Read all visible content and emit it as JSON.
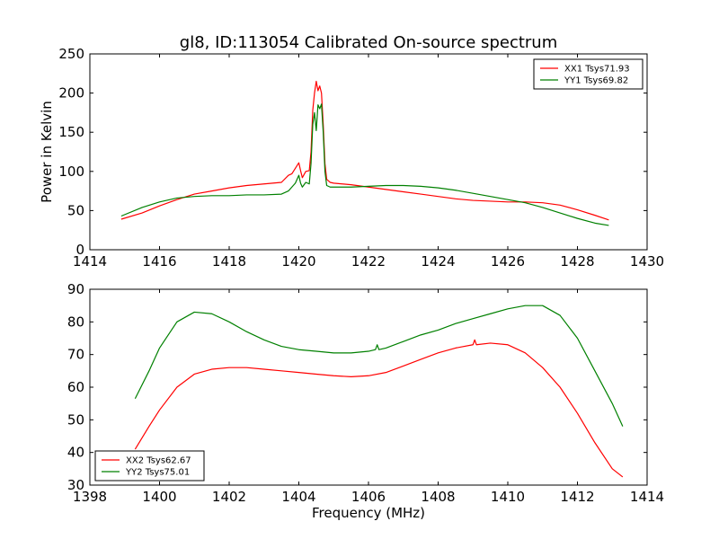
{
  "figure": {
    "title": "gl8, ID:113054 Calibrated On-source spectrum",
    "xlabel": "Frequency (MHz)"
  },
  "chart_data": [
    {
      "type": "line",
      "ylabel": "Power in Kelvin",
      "xlim": [
        1414,
        1430
      ],
      "ylim": [
        0,
        250
      ],
      "xticks": [
        1414,
        1416,
        1418,
        1420,
        1422,
        1424,
        1426,
        1428,
        1430
      ],
      "yticks": [
        0,
        50,
        100,
        150,
        200,
        250
      ],
      "legend_position": "top-right",
      "grid": false,
      "series": [
        {
          "name": "XX1 Tsys71.93",
          "color": "#ff0000",
          "x": [
            1414.9,
            1415.5,
            1416.0,
            1416.5,
            1417.0,
            1417.5,
            1418.0,
            1418.5,
            1419.0,
            1419.5,
            1419.7,
            1419.8,
            1419.9,
            1420.0,
            1420.05,
            1420.1,
            1420.2,
            1420.3,
            1420.35,
            1420.4,
            1420.45,
            1420.5,
            1420.55,
            1420.6,
            1420.65,
            1420.7,
            1420.75,
            1420.8,
            1420.9,
            1421.0,
            1421.5,
            1422.0,
            1422.5,
            1423.0,
            1423.5,
            1424.0,
            1424.5,
            1425.0,
            1425.5,
            1426.0,
            1426.5,
            1427.0,
            1427.5,
            1428.0,
            1428.5,
            1428.9
          ],
          "y": [
            39,
            47,
            56,
            64,
            71,
            75,
            79,
            82,
            84,
            86,
            95,
            97,
            104,
            111,
            101,
            92,
            100,
            101,
            125,
            178,
            200,
            215,
            203,
            209,
            200,
            160,
            110,
            90,
            86,
            85,
            83,
            80,
            77,
            74,
            71,
            68,
            65,
            63,
            62,
            61,
            61,
            60,
            57,
            51,
            44,
            38
          ]
        },
        {
          "name": "YY1 Tsys69.82",
          "color": "#008000",
          "x": [
            1414.9,
            1415.5,
            1416.0,
            1416.5,
            1417.0,
            1417.5,
            1418.0,
            1418.5,
            1419.0,
            1419.5,
            1419.7,
            1419.8,
            1419.9,
            1420.0,
            1420.05,
            1420.1,
            1420.2,
            1420.3,
            1420.35,
            1420.4,
            1420.45,
            1420.5,
            1420.55,
            1420.6,
            1420.65,
            1420.7,
            1420.75,
            1420.8,
            1420.9,
            1421.0,
            1421.5,
            1422.0,
            1422.5,
            1423.0,
            1423.5,
            1424.0,
            1424.5,
            1425.0,
            1425.5,
            1426.0,
            1426.5,
            1427.0,
            1427.5,
            1428.0,
            1428.5,
            1428.9
          ],
          "y": [
            43,
            54,
            61,
            66,
            68,
            69,
            69,
            70,
            70,
            71,
            75,
            80,
            85,
            95,
            85,
            80,
            86,
            84,
            110,
            160,
            175,
            152,
            185,
            180,
            186,
            150,
            100,
            82,
            80,
            80,
            80,
            81,
            82,
            82,
            81,
            79,
            76,
            72,
            68,
            64,
            60,
            54,
            47,
            40,
            34,
            31
          ]
        }
      ]
    },
    {
      "type": "line",
      "ylabel": "",
      "xlim": [
        1398,
        1414
      ],
      "ylim": [
        30,
        90
      ],
      "xticks": [
        1398,
        1400,
        1402,
        1404,
        1406,
        1408,
        1410,
        1412,
        1414
      ],
      "yticks": [
        30,
        40,
        50,
        60,
        70,
        80,
        90
      ],
      "legend_position": "bottom-left",
      "grid": false,
      "series": [
        {
          "name": "XX2 Tsys62.67",
          "color": "#ff0000",
          "x": [
            1399.3,
            1399.7,
            1400.0,
            1400.5,
            1401.0,
            1401.5,
            1402.0,
            1402.5,
            1403.0,
            1403.5,
            1404.0,
            1404.5,
            1405.0,
            1405.5,
            1406.0,
            1406.5,
            1407.0,
            1407.5,
            1408.0,
            1408.5,
            1409.0,
            1409.05,
            1409.1,
            1409.5,
            1410.0,
            1410.5,
            1411.0,
            1411.5,
            1412.0,
            1412.5,
            1413.0,
            1413.3
          ],
          "y": [
            41,
            48,
            53,
            60,
            64,
            65.5,
            66,
            66,
            65.5,
            65,
            64.5,
            64,
            63.5,
            63.2,
            63.5,
            64.5,
            66.5,
            68.5,
            70.5,
            72,
            73,
            74.5,
            73,
            73.5,
            73,
            70.5,
            66,
            60,
            52,
            43,
            35,
            32.5
          ]
        },
        {
          "name": "YY2 Tsys75.01",
          "color": "#008000",
          "x": [
            1399.3,
            1399.7,
            1400.0,
            1400.5,
            1401.0,
            1401.5,
            1402.0,
            1402.5,
            1403.0,
            1403.5,
            1404.0,
            1404.5,
            1405.0,
            1405.5,
            1406.0,
            1406.2,
            1406.25,
            1406.3,
            1406.5,
            1407.0,
            1407.5,
            1408.0,
            1408.5,
            1409.0,
            1409.5,
            1410.0,
            1410.5,
            1411.0,
            1411.5,
            1412.0,
            1412.5,
            1413.0,
            1413.3
          ],
          "y": [
            56.5,
            65,
            72,
            80,
            83,
            82.5,
            80,
            77,
            74.5,
            72.5,
            71.5,
            71,
            70.5,
            70.5,
            71,
            71.5,
            73,
            71.5,
            72,
            74,
            76,
            77.5,
            79.5,
            81,
            82.5,
            84,
            85,
            85,
            82,
            75,
            65,
            55,
            48
          ]
        }
      ]
    }
  ]
}
